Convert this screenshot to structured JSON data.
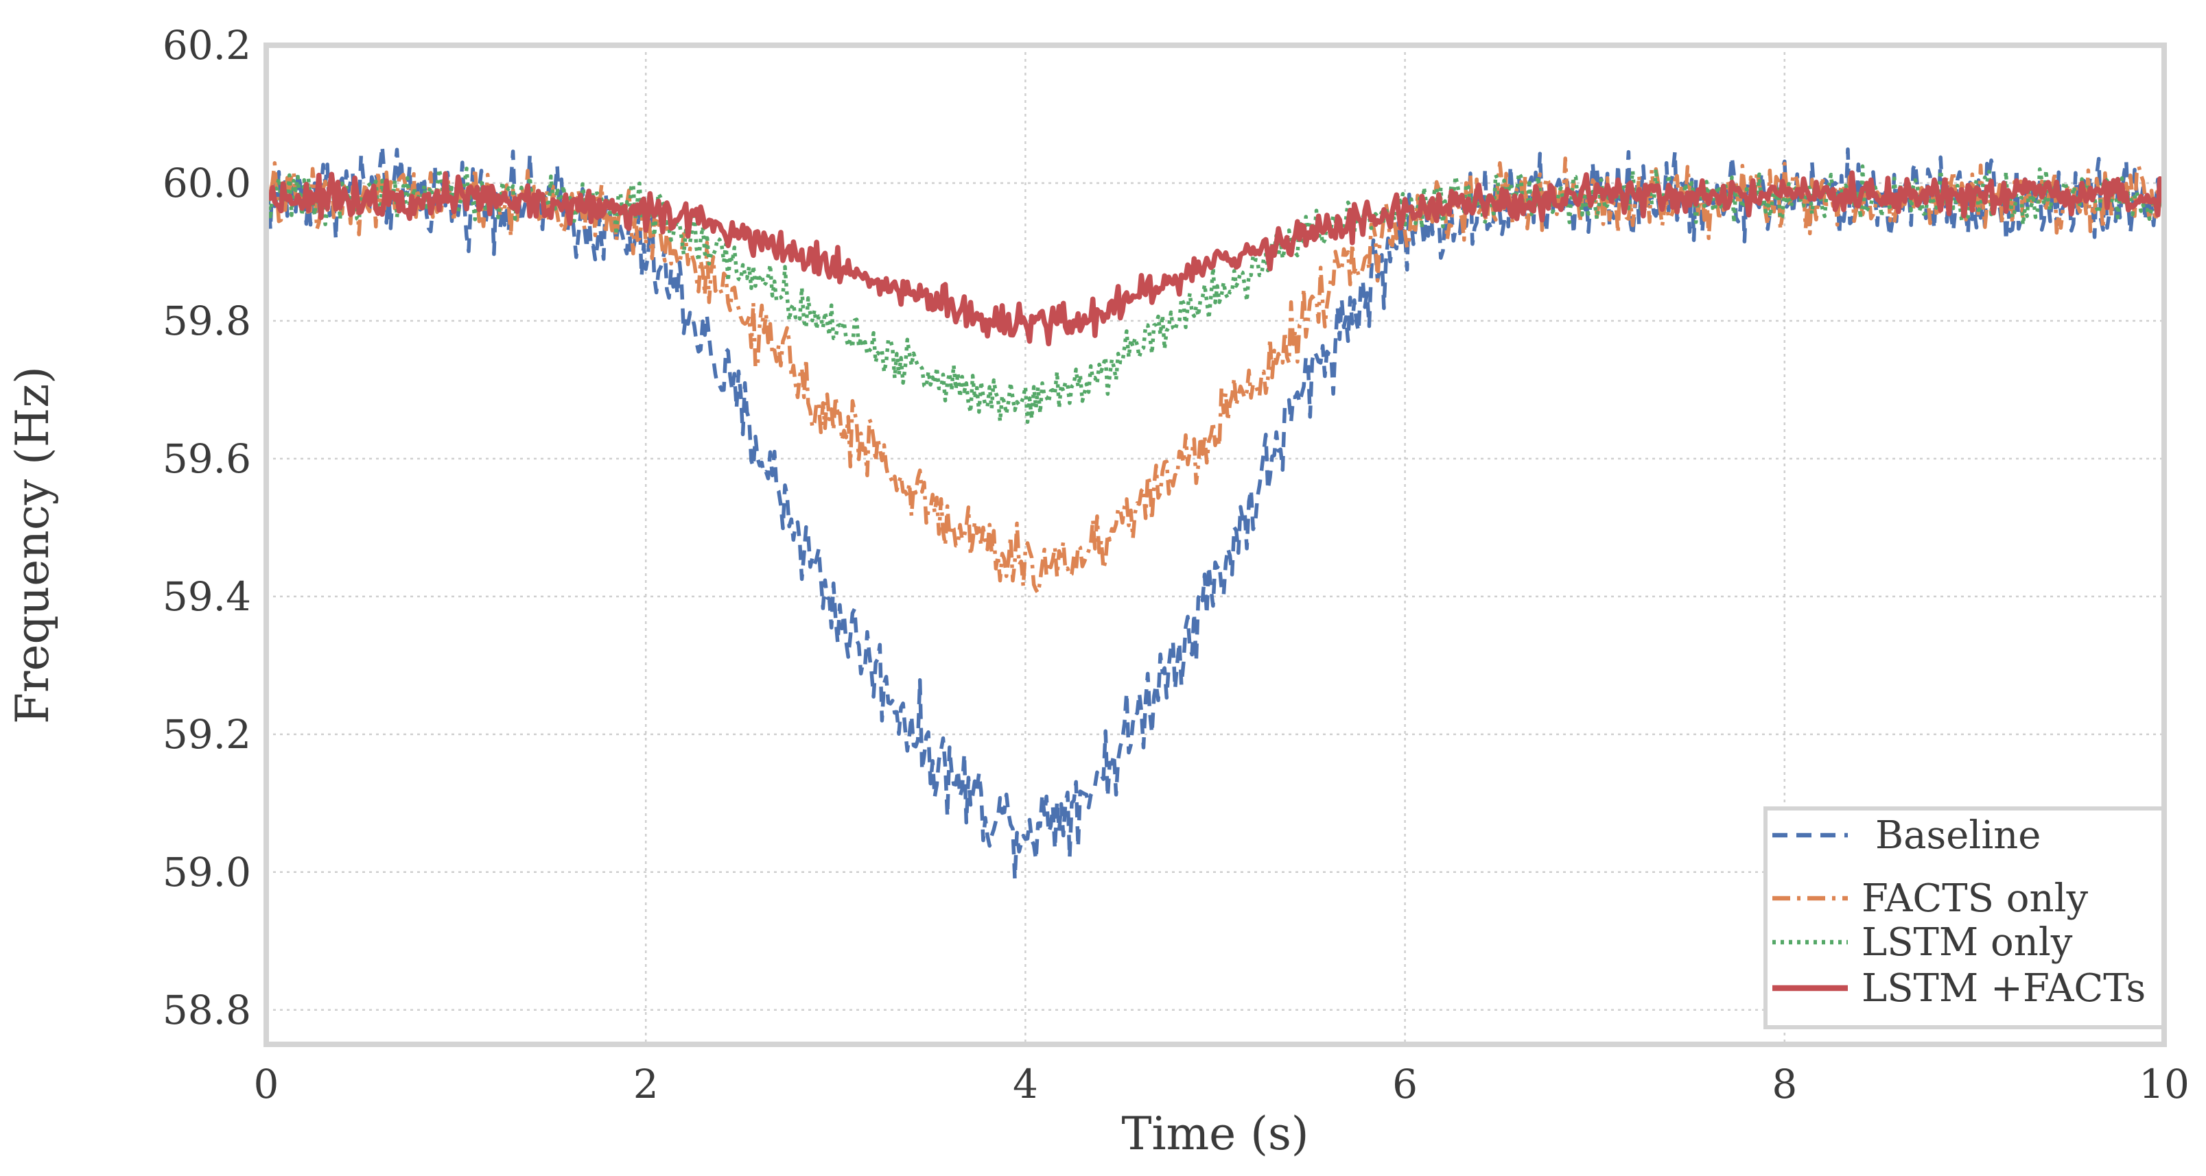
{
  "chart_data": {
    "type": "line",
    "title": "",
    "xlabel": "Time (s)",
    "ylabel": "Frequency (Hz)",
    "xlim": [
      0,
      10
    ],
    "ylim": [
      58.75,
      60.2
    ],
    "xticks": [
      0,
      2,
      4,
      6,
      8,
      10
    ],
    "xtick_labels": [
      "0",
      "2",
      "4",
      "6",
      "8",
      "10"
    ],
    "yticks": [
      58.8,
      59.0,
      59.2,
      59.4,
      59.6,
      59.8,
      60.0,
      60.2
    ],
    "ytick_labels": [
      "58.8",
      "59.0",
      "59.2",
      "59.4",
      "59.6",
      "59.8",
      "60.0",
      "60.2"
    ],
    "grid": true,
    "legend_position": "bottom-right",
    "series": [
      {
        "name": "Baseline",
        "color": "#4c72b0",
        "style": "dashed",
        "noise": 0.045,
        "x": [
          0,
          0.5,
          1,
          1.5,
          2,
          2.2,
          2.5,
          3,
          3.5,
          3.8,
          4,
          4.3,
          4.5,
          5,
          5.5,
          6,
          6.5,
          7,
          8,
          9,
          10
        ],
        "values": [
          59.98,
          59.99,
          59.98,
          59.97,
          59.9,
          59.83,
          59.67,
          59.38,
          59.17,
          59.09,
          59.06,
          59.11,
          59.18,
          59.42,
          59.72,
          59.93,
          59.97,
          59.98,
          59.98,
          59.98,
          59.97
        ]
      },
      {
        "name": "FACTS only",
        "color": "#dd8452",
        "style": "dashdot",
        "noise": 0.035,
        "x": [
          0,
          0.5,
          1,
          1.5,
          2,
          2.2,
          2.5,
          3,
          3.5,
          3.8,
          4,
          4.3,
          4.5,
          5,
          5.5,
          6,
          6.5,
          7,
          8,
          9,
          10
        ],
        "values": [
          59.98,
          59.98,
          59.98,
          59.97,
          59.94,
          59.9,
          59.81,
          59.66,
          59.53,
          59.47,
          59.44,
          59.46,
          59.51,
          59.64,
          59.82,
          59.95,
          59.98,
          59.98,
          59.98,
          59.98,
          59.98
        ]
      },
      {
        "name": "LSTM only",
        "color": "#55a868",
        "style": "dotted",
        "noise": 0.025,
        "x": [
          0,
          0.5,
          1,
          1.5,
          2,
          2.2,
          2.5,
          3,
          3.5,
          3.8,
          4,
          4.3,
          4.5,
          5,
          5.5,
          6,
          6.5,
          7,
          8,
          9,
          10
        ],
        "values": [
          59.98,
          59.98,
          59.98,
          59.98,
          59.96,
          59.93,
          59.88,
          59.79,
          59.72,
          59.69,
          59.69,
          59.71,
          59.75,
          59.84,
          59.93,
          59.97,
          59.98,
          59.98,
          59.98,
          59.98,
          59.98
        ]
      },
      {
        "name": "LSTM +FACTs",
        "color": "#c44e52",
        "style": "solid",
        "noise": 0.02,
        "x": [
          0,
          0.5,
          1,
          1.5,
          2,
          2.2,
          2.5,
          3,
          3.5,
          3.8,
          4,
          4.3,
          4.5,
          5,
          5.5,
          6,
          6.5,
          7,
          8,
          9,
          10
        ],
        "values": [
          59.98,
          59.98,
          59.98,
          59.97,
          59.96,
          59.95,
          59.93,
          59.88,
          59.83,
          59.8,
          59.79,
          59.8,
          59.83,
          59.88,
          59.93,
          59.96,
          59.97,
          59.98,
          59.98,
          59.98,
          59.98
        ]
      }
    ]
  }
}
